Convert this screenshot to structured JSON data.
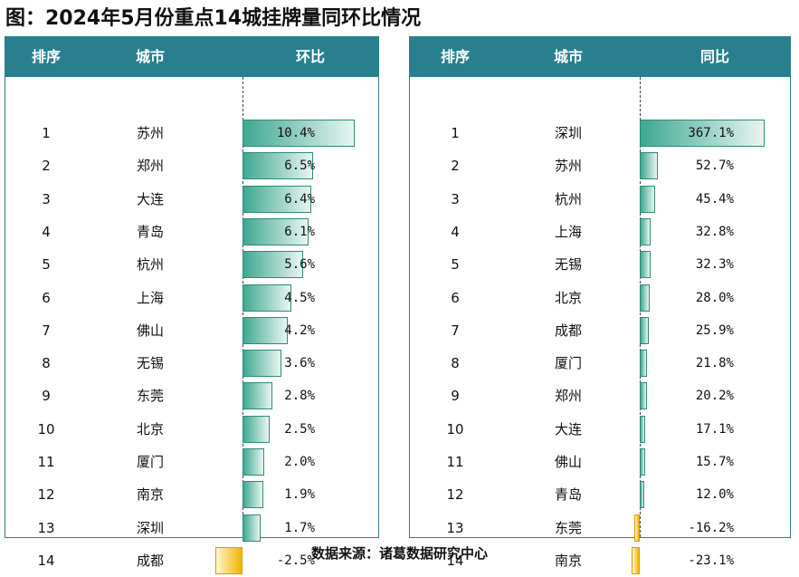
{
  "title": "图：2024年5月份重点14城挂牌量同环比情况",
  "source": "数据来源：诸葛数据研究中心",
  "colors": {
    "header_bg": "#2a7f8f",
    "positive_bar": "#3fa891",
    "negative_bar": "#f1b400"
  },
  "chart_data": [
    {
      "type": "bar",
      "title": "环比",
      "headers": [
        "排序",
        "城市",
        "环比"
      ],
      "ranks": [
        "1",
        "2",
        "3",
        "4",
        "5",
        "6",
        "7",
        "8",
        "9",
        "10",
        "11",
        "12",
        "13",
        "14"
      ],
      "categories": [
        "苏州",
        "郑州",
        "大连",
        "青岛",
        "杭州",
        "上海",
        "佛山",
        "无锡",
        "东莞",
        "北京",
        "厦门",
        "南京",
        "深圳",
        "成都"
      ],
      "values": [
        10.4,
        6.5,
        6.4,
        6.1,
        5.6,
        4.5,
        4.2,
        3.6,
        2.8,
        2.5,
        2.0,
        1.9,
        1.7,
        -2.5
      ],
      "labels": [
        "10.4%",
        "6.5%",
        "6.4%",
        "6.1%",
        "5.6%",
        "4.5%",
        "4.2%",
        "3.6%",
        "2.8%",
        "2.5%",
        "2.0%",
        "1.9%",
        "1.7%",
        "-2.5%"
      ]
    },
    {
      "type": "bar",
      "title": "同比",
      "headers": [
        "排序",
        "城市",
        "同比"
      ],
      "ranks": [
        "1",
        "2",
        "3",
        "4",
        "5",
        "6",
        "7",
        "8",
        "9",
        "10",
        "11",
        "12",
        "13",
        "14"
      ],
      "categories": [
        "深圳",
        "苏州",
        "杭州",
        "上海",
        "无锡",
        "北京",
        "成都",
        "厦门",
        "郑州",
        "大连",
        "佛山",
        "青岛",
        "东莞",
        "南京"
      ],
      "values": [
        367.1,
        52.7,
        45.4,
        32.8,
        32.3,
        28.0,
        25.9,
        21.8,
        20.2,
        17.1,
        15.7,
        12.0,
        -16.2,
        -23.1
      ],
      "labels": [
        "367.1%",
        "52.7%",
        "45.4%",
        "32.8%",
        "32.3%",
        "28.0%",
        "25.9%",
        "21.8%",
        "20.2%",
        "17.1%",
        "15.7%",
        "12.0%",
        "-16.2%",
        "-23.1%"
      ]
    }
  ]
}
